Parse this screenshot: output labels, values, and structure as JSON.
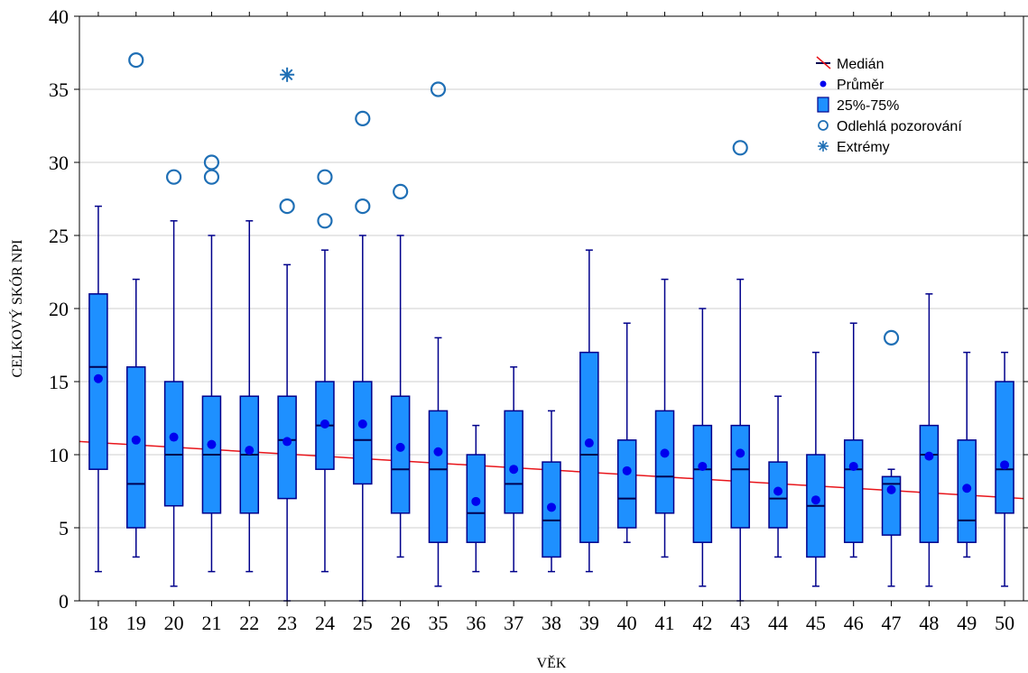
{
  "chart_data": {
    "type": "box",
    "title": "",
    "xlabel": "VĚK",
    "ylabel": "CELKOVÝ SKÓR NPI",
    "ylim": [
      0,
      40
    ],
    "yticks": [
      0,
      5,
      10,
      15,
      20,
      25,
      30,
      35,
      40
    ],
    "grid": "horizontal",
    "legend_position": "top-right",
    "colors": {
      "box": "#1e90ff",
      "border": "#00008b",
      "mean": "#0000ee",
      "outlier": "#1f6fb5",
      "trend": "#e8151b"
    },
    "categories": [
      "18",
      "19",
      "20",
      "21",
      "22",
      "23",
      "24",
      "25",
      "26",
      "35",
      "36",
      "37",
      "38",
      "39",
      "40",
      "41",
      "42",
      "43",
      "44",
      "45",
      "46",
      "47",
      "48",
      "49",
      "50"
    ],
    "boxes": [
      {
        "cat": "18",
        "min": 2,
        "q1": 9,
        "median": 16,
        "q3": 21,
        "max": 27,
        "mean": 15.2
      },
      {
        "cat": "19",
        "min": 3,
        "q1": 5,
        "median": 8,
        "q3": 16,
        "max": 22,
        "mean": 11.0
      },
      {
        "cat": "20",
        "min": 1,
        "q1": 6.5,
        "median": 10,
        "q3": 15,
        "max": 26,
        "mean": 11.2
      },
      {
        "cat": "21",
        "min": 2,
        "q1": 6,
        "median": 10,
        "q3": 14,
        "max": 25,
        "mean": 10.7
      },
      {
        "cat": "22",
        "min": 2,
        "q1": 6,
        "median": 10,
        "q3": 14,
        "max": 26,
        "mean": 10.3
      },
      {
        "cat": "23",
        "min": 0,
        "q1": 7,
        "median": 11,
        "q3": 14,
        "max": 23,
        "mean": 10.9
      },
      {
        "cat": "24",
        "min": 2,
        "q1": 9,
        "median": 12,
        "q3": 15,
        "max": 24,
        "mean": 12.1
      },
      {
        "cat": "25",
        "min": 0,
        "q1": 8,
        "median": 11,
        "q3": 15,
        "max": 25,
        "mean": 12.1
      },
      {
        "cat": "26",
        "min": 3,
        "q1": 6,
        "median": 9,
        "q3": 14,
        "max": 25,
        "mean": 10.5
      },
      {
        "cat": "35",
        "min": 1,
        "q1": 4,
        "median": 9,
        "q3": 13,
        "max": 18,
        "mean": 10.2
      },
      {
        "cat": "36",
        "min": 2,
        "q1": 4,
        "median": 6,
        "q3": 10,
        "max": 12,
        "mean": 6.8
      },
      {
        "cat": "37",
        "min": 2,
        "q1": 6,
        "median": 8,
        "q3": 13,
        "max": 16,
        "mean": 9.0
      },
      {
        "cat": "38",
        "min": 2,
        "q1": 3,
        "median": 5.5,
        "q3": 9.5,
        "max": 13,
        "mean": 6.4
      },
      {
        "cat": "39",
        "min": 2,
        "q1": 4,
        "median": 10,
        "q3": 17,
        "max": 24,
        "mean": 10.8
      },
      {
        "cat": "40",
        "min": 4,
        "q1": 5,
        "median": 7,
        "q3": 11,
        "max": 19,
        "mean": 8.9
      },
      {
        "cat": "41",
        "min": 3,
        "q1": 6,
        "median": 8.5,
        "q3": 13,
        "max": 22,
        "mean": 10.1
      },
      {
        "cat": "42",
        "min": 1,
        "q1": 4,
        "median": 9,
        "q3": 12,
        "max": 20,
        "mean": 9.2
      },
      {
        "cat": "43",
        "min": 0,
        "q1": 5,
        "median": 9,
        "q3": 12,
        "max": 22,
        "mean": 10.1
      },
      {
        "cat": "44",
        "min": 3,
        "q1": 5,
        "median": 7,
        "q3": 9.5,
        "max": 14,
        "mean": 7.5
      },
      {
        "cat": "45",
        "min": 1,
        "q1": 3,
        "median": 6.5,
        "q3": 10,
        "max": 17,
        "mean": 6.9
      },
      {
        "cat": "46",
        "min": 3,
        "q1": 4,
        "median": 9,
        "q3": 11,
        "max": 19,
        "mean": 9.2
      },
      {
        "cat": "47",
        "min": 1,
        "q1": 4.5,
        "median": 8,
        "q3": 8.5,
        "max": 9,
        "mean": 7.6
      },
      {
        "cat": "48",
        "min": 1,
        "q1": 4,
        "median": 10,
        "q3": 12,
        "max": 21,
        "mean": 9.9
      },
      {
        "cat": "49",
        "min": 3,
        "q1": 4,
        "median": 5.5,
        "q3": 11,
        "max": 17,
        "mean": 7.7
      },
      {
        "cat": "50",
        "min": 1,
        "q1": 6,
        "median": 9,
        "q3": 15,
        "max": 17,
        "mean": 9.3
      }
    ],
    "outliers": [
      {
        "cat": "19",
        "value": 37
      },
      {
        "cat": "20",
        "value": 29
      },
      {
        "cat": "21",
        "value": 30
      },
      {
        "cat": "21",
        "value": 29
      },
      {
        "cat": "23",
        "value": 27
      },
      {
        "cat": "24",
        "value": 29
      },
      {
        "cat": "24",
        "value": 26
      },
      {
        "cat": "25",
        "value": 33
      },
      {
        "cat": "25",
        "value": 27
      },
      {
        "cat": "26",
        "value": 28
      },
      {
        "cat": "35",
        "value": 35
      },
      {
        "cat": "43",
        "value": 31
      },
      {
        "cat": "47",
        "value": 18
      }
    ],
    "extremes": [
      {
        "cat": "23",
        "value": 36
      }
    ],
    "trend_line": {
      "start": 10.9,
      "end": 7.0
    },
    "legend": [
      {
        "label": "Medián",
        "symbol": "median-line"
      },
      {
        "label": "Průměr",
        "symbol": "mean-dot"
      },
      {
        "label": "25%-75%",
        "symbol": "box"
      },
      {
        "label": "Odlehlá pozorování",
        "symbol": "outlier-circle"
      },
      {
        "label": "Extrémy",
        "symbol": "extreme-star"
      }
    ]
  }
}
